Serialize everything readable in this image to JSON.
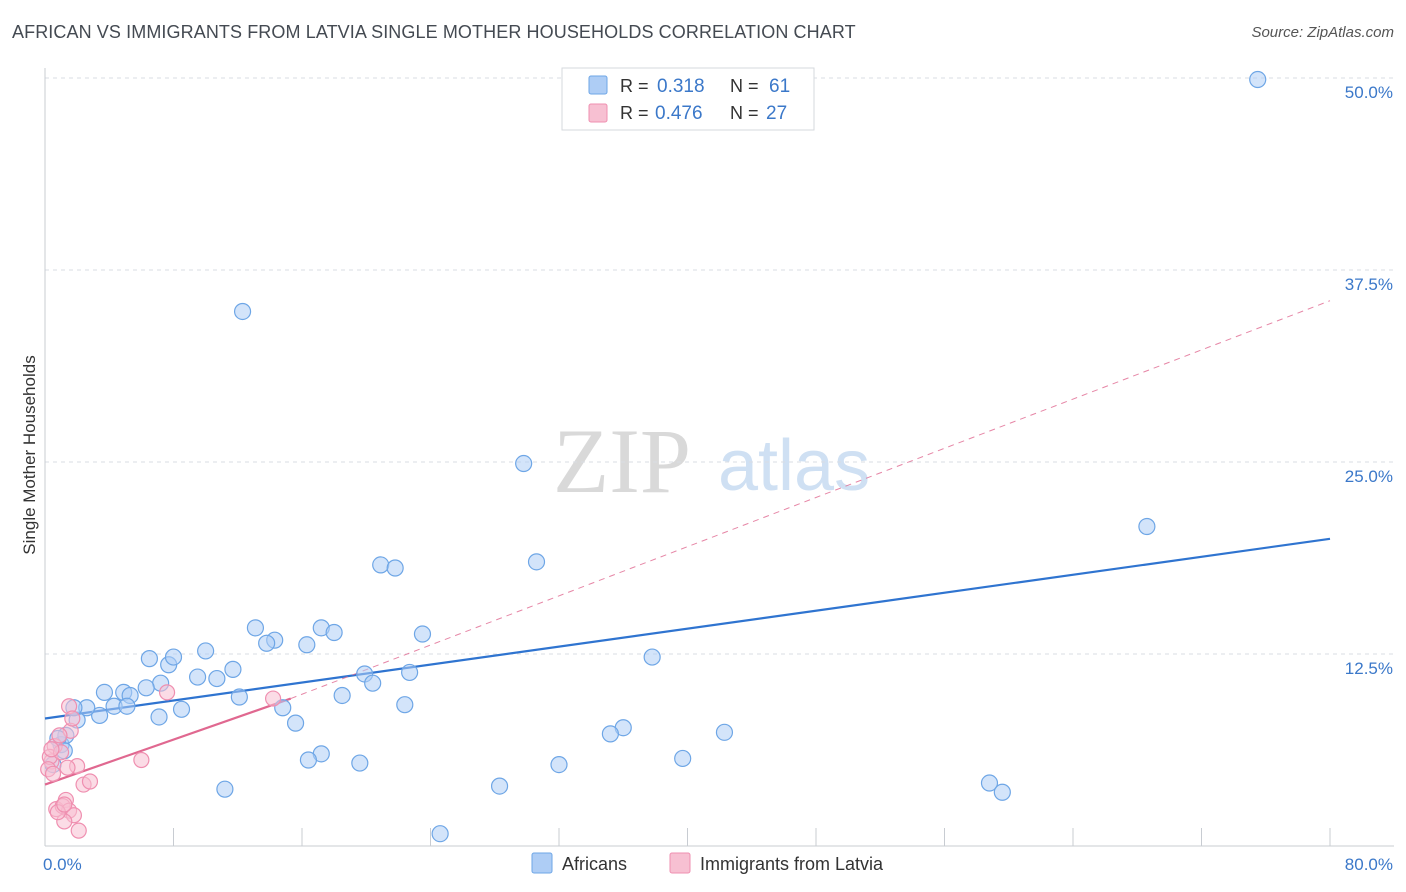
{
  "title": "AFRICAN VS IMMIGRANTS FROM LATVIA SINGLE MOTHER HOUSEHOLDS CORRELATION CHART",
  "source": "Source: ZipAtlas.com",
  "watermark": {
    "zip": "ZIP",
    "atlas": "atlas"
  },
  "colors": {
    "blue": "#6ea6e6",
    "blue_line": "#2f74d0",
    "blue_fill": "#aecdf5",
    "pink": "#ef8fb0",
    "pink_line": "#e06890",
    "pink_fill": "#f7c0d2",
    "tick_label": "#3b78c9",
    "grid": "#d9dde3"
  },
  "legend": {
    "r_label": "R =",
    "n_label": "N =",
    "items": [
      {
        "name": "Africans",
        "r": "0.318",
        "n": "61"
      },
      {
        "name": "Immigrants from Latvia",
        "r": "0.476",
        "n": "27"
      }
    ]
  },
  "chart_data": {
    "type": "scatter",
    "title": "AFRICAN VS IMMIGRANTS FROM LATVIA SINGLE MOTHER HOUSEHOLDS CORRELATION CHART",
    "xlabel": "",
    "ylabel": "Single Mother Households",
    "xlim": [
      0,
      80
    ],
    "ylim": [
      0,
      50
    ],
    "x_tick_labels": [
      "0.0%",
      "80.0%"
    ],
    "y_ticks": [
      12.5,
      25.0,
      37.5,
      50.0
    ],
    "y_tick_labels": [
      "12.5%",
      "25.0%",
      "37.5%",
      "50.0%"
    ],
    "grid": true,
    "legend_position": "top-center",
    "series": [
      {
        "name": "Africans",
        "x": [
          75.5,
          12.3,
          29.8,
          68.6,
          20.9,
          21.8,
          30.6,
          7.7,
          13.1,
          14.3,
          13.8,
          17.2,
          18.0,
          16.3,
          19.9,
          22.7,
          10.0,
          6.5,
          8.0,
          4.9,
          5.3,
          7.2,
          11.7,
          3.4,
          2.6,
          4.3,
          5.1,
          3.7,
          12.1,
          9.5,
          10.7,
          14.8,
          15.6,
          18.5,
          20.4,
          22.4,
          23.5,
          36.0,
          39.7,
          42.3,
          17.2,
          16.4,
          8.5,
          7.1,
          6.3,
          1.0,
          1.3,
          0.8,
          2.0,
          1.8,
          1.2,
          0.5,
          19.6,
          28.3,
          32.0,
          35.2,
          37.8,
          58.8,
          59.6,
          24.6,
          11.2
        ],
        "y": [
          49.9,
          34.8,
          24.9,
          20.8,
          18.3,
          18.1,
          18.5,
          11.8,
          14.2,
          13.4,
          13.2,
          14.2,
          13.9,
          13.1,
          11.2,
          11.3,
          12.7,
          12.2,
          12.3,
          10.0,
          9.8,
          10.6,
          11.5,
          8.5,
          9.0,
          9.1,
          9.1,
          10.0,
          9.7,
          11.0,
          10.9,
          9.0,
          8.0,
          9.8,
          10.6,
          9.2,
          13.8,
          7.7,
          5.7,
          7.4,
          6.0,
          5.6,
          8.9,
          8.4,
          10.3,
          6.6,
          7.2,
          7.0,
          8.2,
          9.0,
          6.2,
          5.3,
          5.4,
          3.9,
          5.3,
          7.3,
          12.3,
          4.1,
          3.5,
          0.8,
          3.7
        ]
      },
      {
        "name": "Immigrants from Latvia",
        "x": [
          1.5,
          1.6,
          1.7,
          2.0,
          2.4,
          1.3,
          0.4,
          0.6,
          0.3,
          0.2,
          0.5,
          0.9,
          1.0,
          0.4,
          0.7,
          1.1,
          1.5,
          2.1,
          2.8,
          1.8,
          1.2,
          0.8,
          1.2,
          1.4,
          7.6,
          6.0,
          14.2
        ],
        "y": [
          9.1,
          7.5,
          8.3,
          5.2,
          4.0,
          3.0,
          5.5,
          6.5,
          5.8,
          5.0,
          4.7,
          7.2,
          6.1,
          6.3,
          2.4,
          2.6,
          2.3,
          1.0,
          4.2,
          2.0,
          1.6,
          2.2,
          2.7,
          5.1,
          10.0,
          5.6,
          9.6
        ]
      }
    ],
    "trend_lines": [
      {
        "series": "Africans",
        "x0": 0,
        "y0": 8.3,
        "x1": 80,
        "y1": 20.0,
        "style": "solid"
      },
      {
        "series": "Immigrants from Latvia",
        "x0": 0,
        "y0": 4.0,
        "x1": 15.3,
        "y1": 9.6,
        "style": "solid"
      },
      {
        "series": "Immigrants from Latvia",
        "x0": 15.3,
        "y0": 9.6,
        "x1": 80,
        "y1": 35.5,
        "style": "dashed"
      }
    ]
  }
}
